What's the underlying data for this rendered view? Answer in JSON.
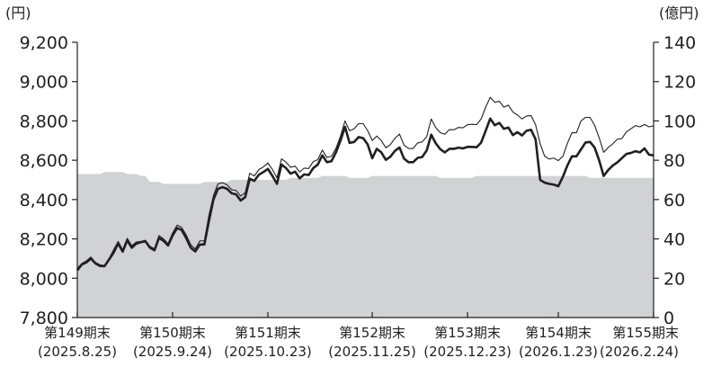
{
  "chart_data": {
    "type": "line",
    "left_axis_unit": "(円)",
    "right_axis_unit": "(億円)",
    "y_left_ticks": [
      "7,800",
      "8,000",
      "8,200",
      "8,400",
      "8,600",
      "8,800",
      "9,000",
      "9,200"
    ],
    "y_right_ticks": [
      "0",
      "20",
      "40",
      "60",
      "80",
      "100",
      "120",
      "140"
    ],
    "y_left_range": [
      7800,
      9200
    ],
    "y_right_range": [
      0,
      140
    ],
    "x_ticks": [
      {
        "label": "第149期末",
        "date": "(2025.8.25)",
        "index": 0
      },
      {
        "label": "第150期末",
        "date": "(2025.9.24)",
        "index": 21
      },
      {
        "label": "第151期末",
        "date": "(2025.10.23)",
        "index": 42
      },
      {
        "label": "第152期末",
        "date": "(2025.11.25)",
        "index": 65
      },
      {
        "label": "第153期末",
        "date": "(2025.12.23)",
        "index": 86
      },
      {
        "label": "第154期末",
        "date": "(2026.1.23)",
        "index": 106
      },
      {
        "label": "第155期末",
        "date": "(2026.2.24)",
        "index": 127
      }
    ],
    "colors": {
      "area": "#d1d2d4",
      "axis": "#231f20",
      "line": "#231f20",
      "background": "#ffffff"
    },
    "series": [
      {
        "axis": "right",
        "style": "area",
        "values": [
          73,
          73,
          73,
          73,
          73,
          73,
          74,
          74,
          74,
          74,
          74,
          73,
          73,
          73,
          72,
          72,
          69,
          69,
          69,
          68,
          68,
          68,
          68,
          68,
          68,
          68,
          68,
          68,
          69,
          69,
          69,
          69,
          69,
          69,
          70,
          70,
          70,
          70,
          70,
          70,
          70,
          70,
          70,
          70,
          70,
          70,
          70,
          71,
          71,
          71,
          71,
          71,
          71,
          71,
          72,
          72,
          72,
          72,
          72,
          72,
          71,
          71,
          71,
          71,
          71,
          72,
          72,
          72,
          72,
          72,
          72,
          72,
          72,
          72,
          72,
          72,
          72,
          72,
          72,
          72,
          71,
          71,
          71,
          71,
          71,
          71,
          71,
          71,
          72,
          72,
          72,
          72,
          72,
          72,
          72,
          72,
          72,
          72,
          72,
          72,
          72,
          72,
          72,
          72,
          72,
          72,
          72,
          72,
          72,
          72,
          72,
          72,
          72,
          71,
          71,
          71,
          71,
          71,
          71,
          71,
          71,
          71,
          71,
          71,
          71,
          71,
          71,
          71
        ]
      },
      {
        "axis": "left",
        "style": "thin",
        "values": [
          8050,
          8075,
          8088,
          8108,
          8080,
          8068,
          8065,
          8100,
          8145,
          8187,
          8145,
          8203,
          8165,
          8184,
          8187,
          8193,
          8162,
          8150,
          8217,
          8200,
          8176,
          8230,
          8270,
          8258,
          8220,
          8170,
          8149,
          8190,
          8190,
          8320,
          8420,
          8480,
          8486,
          8475,
          8450,
          8446,
          8418,
          8435,
          8534,
          8520,
          8552,
          8566,
          8586,
          8553,
          8510,
          8607,
          8590,
          8564,
          8570,
          8540,
          8560,
          8558,
          8593,
          8603,
          8652,
          8614,
          8620,
          8660,
          8723,
          8800,
          8750,
          8760,
          8786,
          8786,
          8750,
          8700,
          8723,
          8700,
          8663,
          8680,
          8712,
          8733,
          8677,
          8660,
          8660,
          8688,
          8693,
          8720,
          8810,
          8766,
          8740,
          8732,
          8756,
          8755,
          8767,
          8765,
          8781,
          8783,
          8781,
          8810,
          8870,
          8920,
          8895,
          8900,
          8870,
          8880,
          8845,
          8830,
          8810,
          8825,
          8827,
          8780,
          8685,
          8620,
          8606,
          8611,
          8598,
          8620,
          8685,
          8740,
          8740,
          8800,
          8818,
          8818,
          8778,
          8715,
          8640,
          8665,
          8683,
          8707,
          8710,
          8744,
          8760,
          8776,
          8770,
          8782,
          8770,
          8775
        ]
      },
      {
        "axis": "left",
        "style": "thick",
        "values": [
          8040,
          8070,
          8080,
          8100,
          8075,
          8062,
          8061,
          8095,
          8130,
          8177,
          8135,
          8193,
          8155,
          8176,
          8183,
          8188,
          8155,
          8142,
          8205,
          8190,
          8166,
          8217,
          8255,
          8245,
          8204,
          8155,
          8136,
          8171,
          8172,
          8290,
          8400,
          8455,
          8463,
          8455,
          8432,
          8426,
          8395,
          8412,
          8506,
          8495,
          8526,
          8540,
          8556,
          8520,
          8480,
          8578,
          8560,
          8532,
          8542,
          8508,
          8528,
          8525,
          8560,
          8578,
          8625,
          8590,
          8595,
          8640,
          8700,
          8770,
          8688,
          8693,
          8718,
          8712,
          8680,
          8610,
          8658,
          8640,
          8602,
          8618,
          8648,
          8665,
          8608,
          8590,
          8590,
          8612,
          8616,
          8650,
          8730,
          8686,
          8656,
          8640,
          8658,
          8658,
          8664,
          8660,
          8668,
          8668,
          8666,
          8690,
          8750,
          8812,
          8778,
          8790,
          8760,
          8766,
          8728,
          8743,
          8726,
          8750,
          8755,
          8706,
          8500,
          8486,
          8480,
          8476,
          8468,
          8515,
          8573,
          8620,
          8620,
          8655,
          8690,
          8693,
          8665,
          8600,
          8520,
          8550,
          8573,
          8589,
          8610,
          8632,
          8637,
          8646,
          8640,
          8660,
          8628,
          8625
        ]
      }
    ]
  }
}
